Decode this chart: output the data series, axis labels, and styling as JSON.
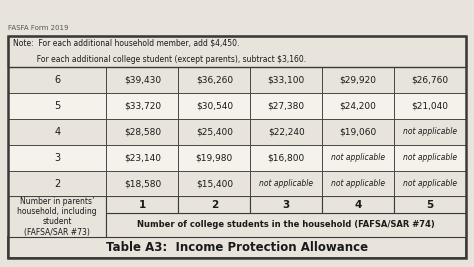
{
  "title": "Table A3:  Income Protection Allowance",
  "col_header_main": "Number of college students in the household (FAFSA/SAR #74)",
  "row_header": "Number in parents’\nhousehold, including\nstudent\n(FAFSA/SAR #73)",
  "col_numbers": [
    "1",
    "2",
    "3",
    "4",
    "5"
  ],
  "row_numbers": [
    "2",
    "3",
    "4",
    "5",
    "6"
  ],
  "table_data": [
    [
      "$18,580",
      "$15,400",
      "not applicable",
      "not applicable",
      "not applicable"
    ],
    [
      "$23,140",
      "$19,980",
      "$16,800",
      "not applicable",
      "not applicable"
    ],
    [
      "$28,580",
      "$25,400",
      "$22,240",
      "$19,060",
      "not applicable"
    ],
    [
      "$33,720",
      "$30,540",
      "$27,380",
      "$24,200",
      "$21,040"
    ],
    [
      "$39,430",
      "$36,260",
      "$33,100",
      "$29,920",
      "$26,760"
    ]
  ],
  "note_line1": "Note:  For each additional household member, add $4,450.",
  "note_line2": "          For each additional college student (except parents), subtract $3,160.",
  "footer": "FASFA Form 2019",
  "bg_color": "#e8e4dc",
  "cell_bg": "#f5f2ec",
  "border_color": "#3a3a3a",
  "text_color": "#1a1a1a"
}
